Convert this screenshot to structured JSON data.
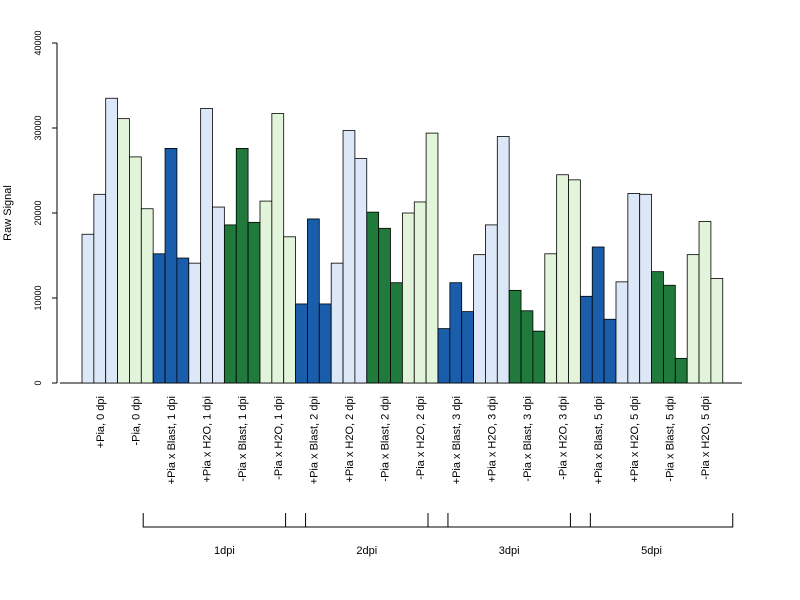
{
  "chart_data": {
    "type": "bar",
    "ylabel": "Raw Signal",
    "ylim": [
      0,
      40000
    ],
    "yticks": [
      0,
      10000,
      20000,
      30000,
      40000
    ],
    "bars_per_category": 3,
    "grid": false,
    "legend": "none",
    "colors": {
      "pale_blue": "#dce8f7",
      "dark_blue": "#1a5eab",
      "pale_green": "#e2f5da",
      "dark_green": "#1f7a3c"
    },
    "categories": [
      {
        "label": "+Pia, 0 dpi",
        "color": "pale_blue",
        "values": [
          17500,
          22200,
          33500
        ]
      },
      {
        "label": "-Pia, 0 dpi",
        "color": "pale_green",
        "values": [
          31100,
          26600,
          20500
        ]
      },
      {
        "label": "+Pia x Blast, 1 dpi",
        "color": "dark_blue",
        "values": [
          15200,
          27600,
          14700
        ]
      },
      {
        "label": "+Pia x H2O, 1 dpi",
        "color": "pale_blue",
        "values": [
          14100,
          32300,
          20700
        ]
      },
      {
        "label": "-Pia x Blast, 1 dpi",
        "color": "dark_green",
        "values": [
          18600,
          27600,
          18900
        ]
      },
      {
        "label": "-Pia x H2O, 1 dpi",
        "color": "pale_green",
        "values": [
          21400,
          31700,
          17200
        ]
      },
      {
        "label": "+Pia x Blast, 2 dpi",
        "color": "dark_blue",
        "values": [
          9300,
          19300,
          9300
        ]
      },
      {
        "label": "+Pia x H2O, 2 dpi",
        "color": "pale_blue",
        "values": [
          14100,
          29700,
          26400
        ]
      },
      {
        "label": "-Pia x Blast, 2 dpi",
        "color": "dark_green",
        "values": [
          20100,
          18200,
          11800
        ]
      },
      {
        "label": "-Pia x H2O, 2 dpi",
        "color": "pale_green",
        "values": [
          20000,
          21300,
          29400
        ]
      },
      {
        "label": "+Pia x Blast, 3 dpi",
        "color": "dark_blue",
        "values": [
          6400,
          11800,
          8400
        ]
      },
      {
        "label": "+Pia x H2O, 3 dpi",
        "color": "pale_blue",
        "values": [
          15100,
          18600,
          29000
        ]
      },
      {
        "label": "-Pia x Blast, 3 dpi",
        "color": "dark_green",
        "values": [
          10900,
          8500,
          6100
        ]
      },
      {
        "label": "-Pia x H2O, 3 dpi",
        "color": "pale_green",
        "values": [
          15200,
          24500,
          23900
        ]
      },
      {
        "label": "+Pia x Blast, 5 dpi",
        "color": "dark_blue",
        "values": [
          10200,
          16000,
          7500
        ]
      },
      {
        "label": "+Pia x H2O, 5 dpi",
        "color": "pale_blue",
        "values": [
          11900,
          22300,
          22200
        ]
      },
      {
        "label": "-Pia x Blast, 5 dpi",
        "color": "dark_green",
        "values": [
          13100,
          11500,
          2900
        ]
      },
      {
        "label": "-Pia x H2O, 5 dpi",
        "color": "pale_green",
        "values": [
          15100,
          19000,
          12300
        ]
      }
    ],
    "groups": [
      {
        "label": "1dpi",
        "first_category": 2,
        "last_category": 5
      },
      {
        "label": "2dpi",
        "first_category": 6,
        "last_category": 9
      },
      {
        "label": "3dpi",
        "first_category": 10,
        "last_category": 13
      },
      {
        "label": "5dpi",
        "first_category": 14,
        "last_category": 17
      }
    ]
  }
}
